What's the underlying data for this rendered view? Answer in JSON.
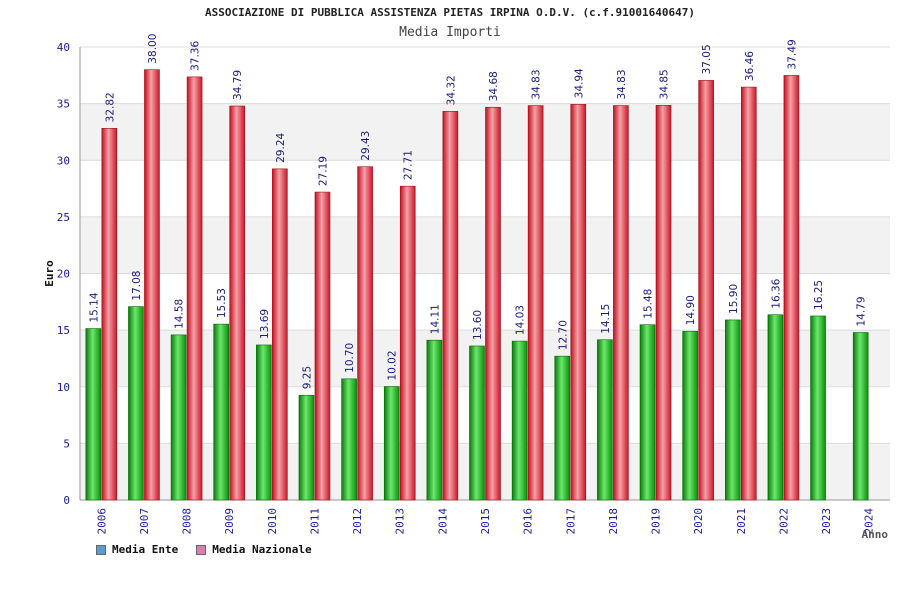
{
  "chart_data": {
    "type": "bar",
    "title": "ASSOCIAZIONE DI PUBBLICA ASSISTENZA PIETAS IRPINA O.D.V. (c.f.91001640647)",
    "subtitle": "Media Importi",
    "xlabel": "Anno",
    "ylabel": "Euro",
    "ylim": [
      0,
      40
    ],
    "yticks": [
      0,
      5,
      10,
      15,
      20,
      25,
      30,
      35,
      40
    ],
    "categories": [
      "2006",
      "2007",
      "2008",
      "2009",
      "2010",
      "2011",
      "2012",
      "2013",
      "2014",
      "2015",
      "2016",
      "2017",
      "2018",
      "2019",
      "2020",
      "2021",
      "2022",
      "2023",
      "2024"
    ],
    "series": [
      {
        "name": "Media Ente",
        "color": "#1fbf1f",
        "legend_color": "#5b9bd5",
        "values": [
          15.14,
          17.08,
          14.58,
          15.53,
          13.69,
          9.25,
          10.7,
          10.02,
          14.11,
          13.6,
          14.03,
          12.7,
          14.15,
          15.48,
          14.9,
          15.9,
          16.36,
          16.25,
          14.79
        ],
        "labels": [
          "15.14",
          "17.08",
          "14.58",
          "15.53",
          "13.69",
          "9.25",
          "10.70",
          "10.02",
          "14.11",
          "13.60",
          "14.03",
          "12.70",
          "14.15",
          "15.48",
          "14.90",
          "15.90",
          "16.36",
          "16.25",
          "14.79"
        ]
      },
      {
        "name": "Media Nazionale",
        "color": "#e8303a",
        "legend_color": "#d97fb0",
        "values": [
          32.82,
          38.0,
          37.36,
          34.79,
          29.24,
          27.19,
          29.43,
          27.71,
          34.32,
          34.68,
          34.83,
          34.94,
          34.83,
          34.85,
          37.05,
          36.46,
          37.49,
          null,
          null
        ],
        "labels": [
          "32.82",
          "38.00",
          "37.36",
          "34.79",
          "29.24",
          "27.19",
          "29.43",
          "27.71",
          "34.32",
          "34.68",
          "34.83",
          "34.94",
          "34.83",
          "34.85",
          "37.05",
          "36.46",
          "37.49",
          "",
          ""
        ]
      }
    ],
    "grid": true,
    "legend_position": "bottom-left"
  }
}
